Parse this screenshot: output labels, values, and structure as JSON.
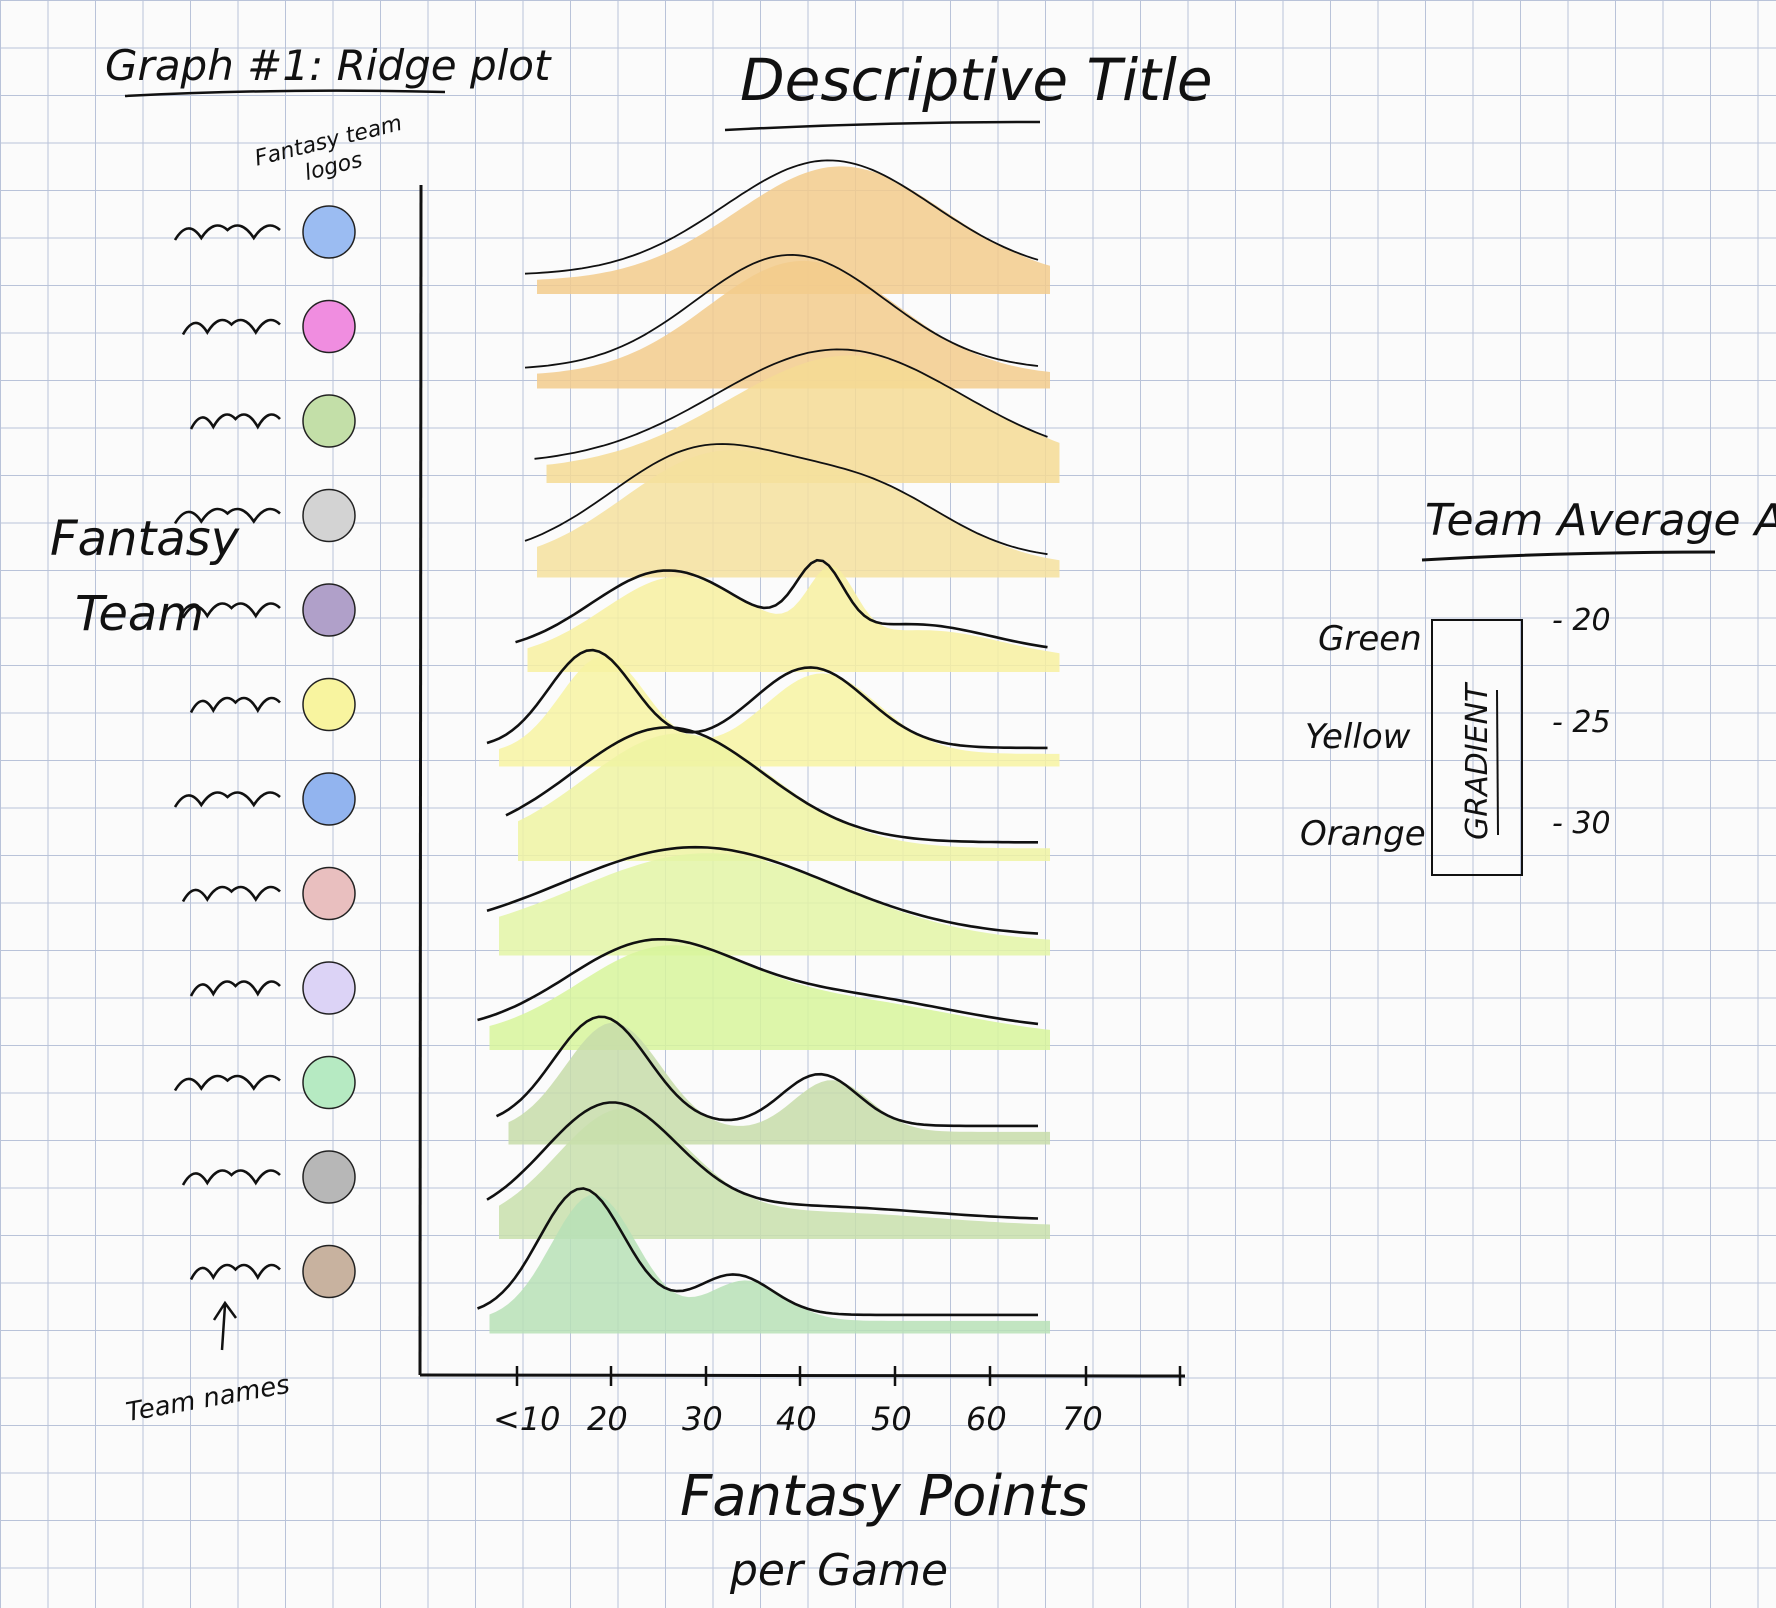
{
  "header": {
    "graph_label": "Graph #1: Ridge plot",
    "title": "Descriptive Title"
  },
  "annotations": {
    "logos_label_line1": "Fantasy team",
    "logos_label_line2": "logos",
    "team_names_label": "Team names",
    "y_axis_label_line1": "Fantasy",
    "y_axis_label_line2": "Team",
    "x_axis_label_line1": "Fantasy Points",
    "x_axis_label_line2": "per Game"
  },
  "legend": {
    "title": "Team Average Age",
    "box_text": "GRADIENT",
    "entries": [
      {
        "color_name": "Green",
        "age": "- 20"
      },
      {
        "color_name": "Yellow",
        "age": "- 25"
      },
      {
        "color_name": "Orange",
        "age": "- 30"
      }
    ]
  },
  "chart_data": {
    "type": "ridge",
    "title": "Descriptive Title",
    "xlabel": "Fantasy Points per Game",
    "ylabel": "Fantasy Team",
    "x_ticks": [
      "<10",
      "20",
      "30",
      "40",
      "50",
      "60",
      "70"
    ],
    "xlim": [
      10,
      80
    ],
    "teams": [
      {
        "logo_color": "#9bbcf2",
        "fill_color": "#f2cb8c",
        "start": 15,
        "end": 69,
        "peaks": [
          {
            "mu": 47,
            "sd": 11,
            "h": 1.0
          }
        ]
      },
      {
        "logo_color": "#f08de0",
        "fill_color": "#f2cb8c",
        "start": 15,
        "end": 69,
        "peaks": [
          {
            "mu": 43,
            "sd": 10,
            "h": 1.0
          }
        ]
      },
      {
        "logo_color": "#c3dfa8",
        "fill_color": "#f5da94",
        "start": 16,
        "end": 70,
        "peaks": [
          {
            "mu": 48,
            "sd": 13,
            "h": 1.0
          }
        ]
      },
      {
        "logo_color": "#d3d3d3",
        "fill_color": "#f5e09d",
        "start": 15,
        "end": 70,
        "peaks": [
          {
            "mu": 34,
            "sd": 10,
            "h": 0.95
          },
          {
            "mu": 52,
            "sd": 8,
            "h": 0.5
          }
        ]
      },
      {
        "logo_color": "#b0a0c9",
        "fill_color": "#f7f0a0",
        "start": 14,
        "end": 70,
        "peaks": [
          {
            "mu": 30,
            "sd": 8,
            "h": 0.72
          },
          {
            "mu": 46,
            "sd": 2.5,
            "h": 0.6
          },
          {
            "mu": 56,
            "sd": 8,
            "h": 0.25
          }
        ]
      },
      {
        "logo_color": "#f8f49f",
        "fill_color": "#f7f3a2",
        "start": 11,
        "end": 70,
        "peaks": [
          {
            "mu": 22,
            "sd": 4.5,
            "h": 0.85
          },
          {
            "mu": 45,
            "sd": 6,
            "h": 0.7
          }
        ]
      },
      {
        "logo_color": "#92b4ef",
        "fill_color": "#eef3a2",
        "start": 13,
        "end": 69,
        "peaks": [
          {
            "mu": 30,
            "sd": 10,
            "h": 1.0
          }
        ]
      },
      {
        "logo_color": "#e9bfbf",
        "fill_color": "#e3f4a6",
        "start": 11,
        "end": 69,
        "peaks": [
          {
            "mu": 33,
            "sd": 14,
            "h": 0.78
          }
        ]
      },
      {
        "logo_color": "#dcd3f6",
        "fill_color": "#d7f59b",
        "start": 10,
        "end": 69,
        "peaks": [
          {
            "mu": 28,
            "sd": 9,
            "h": 0.72
          },
          {
            "mu": 48,
            "sd": 12,
            "h": 0.3
          }
        ]
      },
      {
        "logo_color": "#b6eac2",
        "fill_color": "#c7dca9",
        "start": 12,
        "end": 69,
        "peaks": [
          {
            "mu": 23,
            "sd": 5,
            "h": 0.95
          },
          {
            "mu": 46,
            "sd": 4,
            "h": 0.45
          }
        ]
      },
      {
        "logo_color": "#b7b7b7",
        "fill_color": "#c8dfac",
        "start": 11,
        "end": 69,
        "peaks": [
          {
            "mu": 24,
            "sd": 7,
            "h": 1.0
          },
          {
            "mu": 45,
            "sd": 12,
            "h": 0.12
          }
        ]
      },
      {
        "logo_color": "#c8b29f",
        "fill_color": "#b7e0b6",
        "start": 10,
        "end": 69,
        "peaks": [
          {
            "mu": 21,
            "sd": 4.5,
            "h": 1.1
          },
          {
            "mu": 37,
            "sd": 4,
            "h": 0.35
          }
        ]
      }
    ]
  }
}
